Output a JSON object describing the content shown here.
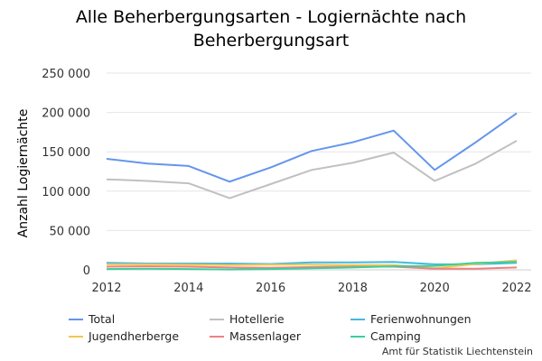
{
  "chart_data": {
    "type": "line",
    "title_line1": "Alle Beherbergungsarten - Logiernächte nach",
    "title_line2": "Beherbergungsart",
    "ylabel": "Anzahl Logiernächte",
    "ylim": [
      0,
      250000
    ],
    "yticks": [
      "0",
      "50 000",
      "100 000",
      "150 000",
      "200 000",
      "250 000"
    ],
    "ytick_values": [
      0,
      50000,
      100000,
      150000,
      200000,
      250000
    ],
    "xlim": [
      2012,
      2022
    ],
    "xticks": [
      "2012",
      "2014",
      "2016",
      "2018",
      "2020",
      "2022"
    ],
    "xtick_values": [
      2012,
      2014,
      2016,
      2018,
      2020,
      2022
    ],
    "x": [
      2012,
      2013,
      2014,
      2015,
      2016,
      2017,
      2018,
      2019,
      2020,
      2021,
      2022
    ],
    "grid": "horizontal",
    "legend_position": "bottom",
    "series": [
      {
        "name": "Total",
        "color": "#6495ed",
        "values": [
          141000,
          135000,
          132000,
          112000,
          130000,
          151000,
          162000,
          177000,
          127000,
          162000,
          199000
        ]
      },
      {
        "name": "Hotellerie",
        "color": "#c0c0c0",
        "values": [
          115000,
          113000,
          110000,
          91000,
          109000,
          127000,
          136000,
          149000,
          113000,
          135000,
          164000
        ]
      },
      {
        "name": "Ferienwohnungen",
        "color": "#45b8e0",
        "values": [
          9000,
          8000,
          8000,
          8000,
          7500,
          9500,
          9500,
          10000,
          7000,
          7000,
          9000
        ]
      },
      {
        "name": "Jugendherberge",
        "color": "#f0c850",
        "values": [
          7000,
          7000,
          6500,
          6000,
          6500,
          6500,
          6000,
          6000,
          2000,
          7500,
          12000
        ]
      },
      {
        "name": "Massenlager",
        "color": "#f08080",
        "values": [
          4000,
          4500,
          4000,
          3000,
          2500,
          3500,
          4000,
          4000,
          1500,
          1500,
          3000
        ]
      },
      {
        "name": "Camping",
        "color": "#3ccf9c",
        "values": [
          1000,
          1500,
          1000,
          500,
          1000,
          2000,
          3000,
          4500,
          5000,
          9000,
          10000
        ]
      }
    ]
  },
  "credit": "Amt für Statistik Liechtenstein"
}
